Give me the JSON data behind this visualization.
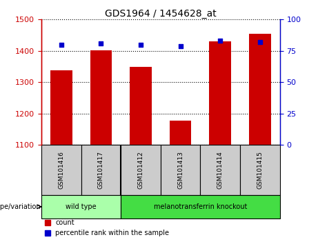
{
  "title": "GDS1964 / 1454628_at",
  "samples": [
    "GSM101416",
    "GSM101417",
    "GSM101412",
    "GSM101413",
    "GSM101414",
    "GSM101415"
  ],
  "counts": [
    1338,
    1402,
    1350,
    1178,
    1430,
    1455
  ],
  "percentiles": [
    80,
    81,
    80,
    79,
    83,
    82
  ],
  "ylim_left": [
    1100,
    1500
  ],
  "yticks_left": [
    1100,
    1200,
    1300,
    1400,
    1500
  ],
  "ylim_right": [
    0,
    100
  ],
  "yticks_right": [
    0,
    25,
    50,
    75,
    100
  ],
  "bar_color": "#cc0000",
  "dot_color": "#0000cc",
  "bar_width": 0.55,
  "groups": [
    {
      "label": "wild type",
      "indices": [
        0,
        1
      ],
      "color": "#aaffaa"
    },
    {
      "label": "melanotransferrin knockout",
      "indices": [
        2,
        3,
        4,
        5
      ],
      "color": "#44dd44"
    }
  ],
  "group_label": "genotype/variation",
  "legend_count_label": "count",
  "legend_percentile_label": "percentile rank within the sample",
  "grid_color": "black",
  "left_tick_color": "#cc0000",
  "right_tick_color": "#0000cc",
  "tick_label_bg": "#cccccc",
  "fig_bg": "#ffffff"
}
